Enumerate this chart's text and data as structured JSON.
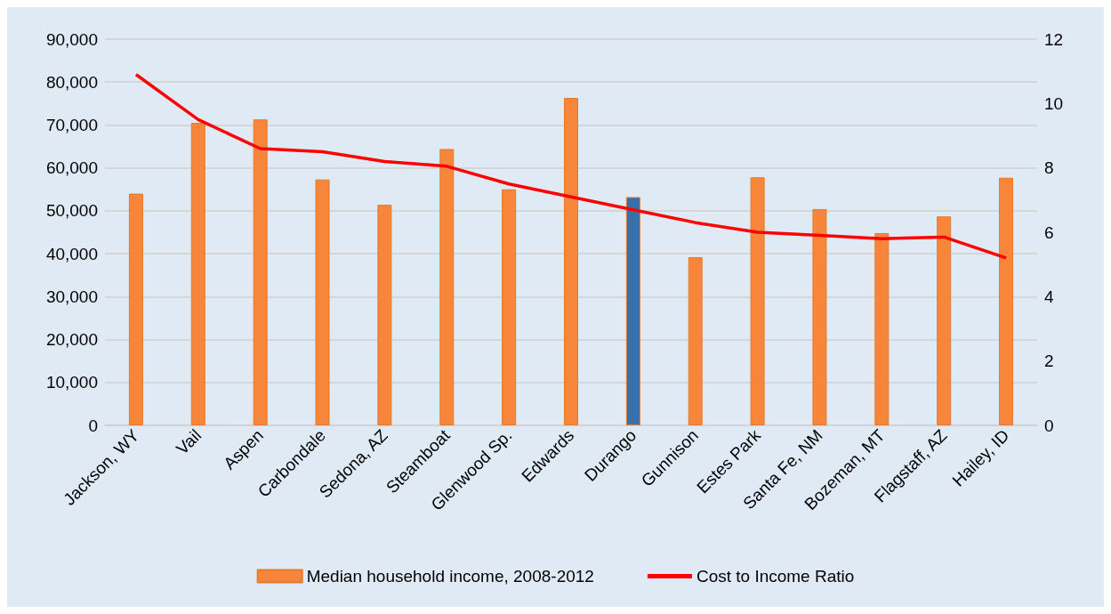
{
  "chart_data": {
    "type": "bar",
    "categories": [
      "Jackson, WY",
      "Vail",
      "Aspen",
      "Carbondale",
      "Sedona, AZ",
      "Steamboat",
      "Glenwood Sp.",
      "Edwards",
      "Durango",
      "Gunnison",
      "Estes Park",
      "Santa Fe, NM",
      "Bozeman, MT",
      "Flagstaff, AZ",
      "Hailey, ID"
    ],
    "series": [
      {
        "name": "Median household income, 2008-2012",
        "color": "#f7863a",
        "colors": [
          "#f7863a",
          "#f7863a",
          "#f7863a",
          "#f7863a",
          "#f7863a",
          "#f7863a",
          "#f7863a",
          "#f7863a",
          "#3a6fa8",
          "#f7863a",
          "#f7863a",
          "#f7863a",
          "#f7863a",
          "#f7863a",
          "#f7863a"
        ],
        "values": [
          54000,
          70500,
          71300,
          57300,
          51400,
          64400,
          55000,
          76300,
          53200,
          39200,
          57800,
          50400,
          44800,
          48700,
          57700
        ]
      },
      {
        "name": "Cost to Income Ratio",
        "type": "line",
        "axis": "y2",
        "color": "#ff0000",
        "values": [
          10.9,
          9.5,
          8.6,
          8.5,
          8.2,
          8.05,
          7.5,
          7.1,
          6.7,
          6.3,
          6.0,
          5.9,
          5.8,
          5.85,
          5.2
        ]
      }
    ],
    "ylim": [
      0,
      90000
    ],
    "yticks": [
      0,
      {
        "value": 10000,
        "label": "10,000"
      },
      {
        "value": 20000,
        "label": "20,000"
      },
      {
        "value": 30000,
        "label": "30,000"
      },
      {
        "value": 40000,
        "label": "40,000"
      },
      {
        "value": 50000,
        "label": "50,000"
      },
      {
        "value": 60000,
        "label": "60,000"
      },
      {
        "value": 70000,
        "label": "70,000"
      },
      {
        "value": 80000,
        "label": "80,000"
      },
      {
        "value": 90000,
        "label": "90,000"
      }
    ],
    "y2lim": [
      0,
      12
    ],
    "y2ticks": [
      0,
      2,
      4,
      6,
      8,
      10,
      12
    ],
    "grid": "y",
    "legend": "bottom",
    "marker": "none",
    "line_style": "solid"
  }
}
